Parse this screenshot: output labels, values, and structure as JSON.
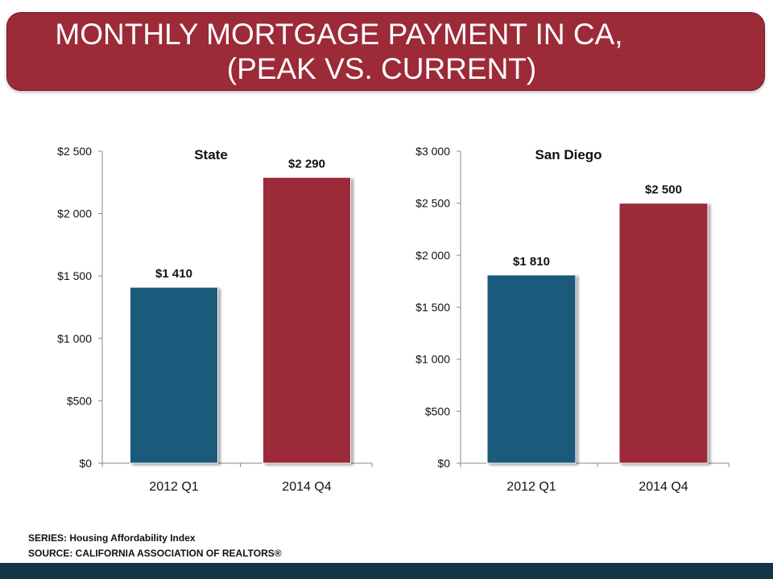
{
  "title": {
    "line1": "MONTHLY MORTGAGE PAYMENT IN CA,",
    "line2": "(PEAK VS. CURRENT)"
  },
  "colors": {
    "banner": "#9c2a37",
    "bar_2012": "#1f5a7c",
    "bar_2014": "#9c2a37",
    "bottom_bar": "#163447"
  },
  "chart_data": [
    {
      "type": "bar",
      "title": "State",
      "categories": [
        "2012 Q1",
        "2014 Q4"
      ],
      "values": [
        1410,
        2290
      ],
      "data_labels": [
        "$1 410",
        "$2 290"
      ],
      "ylim": [
        0,
        2500
      ],
      "yticks": [
        0,
        500,
        1000,
        1500,
        2000,
        2500
      ],
      "ytick_labels": [
        "$0",
        "$500",
        "$1 000",
        "$1 500",
        "$2 000",
        "$2 500"
      ],
      "xlabel": "",
      "ylabel": ""
    },
    {
      "type": "bar",
      "title": "San Diego",
      "categories": [
        "2012 Q1",
        "2014 Q4"
      ],
      "values": [
        1810,
        2500
      ],
      "data_labels": [
        "$1 810",
        "$2 500"
      ],
      "ylim": [
        0,
        3000
      ],
      "yticks": [
        0,
        500,
        1000,
        1500,
        2000,
        2500,
        3000
      ],
      "ytick_labels": [
        "$0",
        "$500",
        "$1 000",
        "$1 500",
        "$2 000",
        "$2 500",
        "$3 000"
      ],
      "xlabel": "",
      "ylabel": ""
    }
  ],
  "footnotes": {
    "series": "SERIES: Housing Affordability Index",
    "source": "SOURCE:  CALIFORNIA ASSOCIATION OF REALTORS®"
  }
}
